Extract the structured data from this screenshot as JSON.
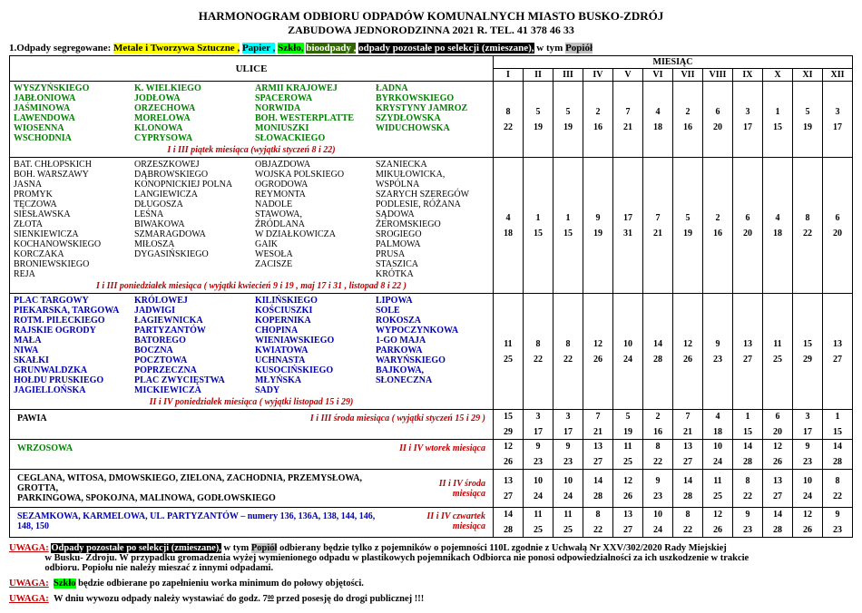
{
  "title": "HARMONOGRAM ODBIORU ODPADÓW KOMUNALNYCH  MIASTO BUSKO-ZDRÓJ",
  "subtitle": "ZABUDOWA  JEDNORODZINNA  2021 R.     TEL.  41 378 46 33",
  "legend_prefix": "1.Odpady segregowane:",
  "legend": {
    "metale": "Metale i Tworzywa Sztuczne ,",
    "papier": " Papier ,",
    "szklo": " Szkło,",
    "bio": "  bioodpady ,",
    "mixed": " odpady pozostałe po selekcji (zmieszane),",
    "suffix": " w tym ",
    "popiol": "Popiół"
  },
  "headers": {
    "ulice": "ULICE",
    "miesiac": "MIESIĄC",
    "months": [
      "I",
      "II",
      "III",
      "IV",
      "V",
      "VI",
      "VII",
      "VIII",
      "IX",
      "X",
      "XI",
      "XII"
    ]
  },
  "group1": {
    "cols": [
      [
        "WYSZYŃSKIEGO",
        "JABŁONIOWA",
        "JAŚMINOWA",
        "LAWENDOWA",
        "WIOSENNA",
        "WSCHODNIA"
      ],
      [
        "K. WIELKIEGO",
        "JODŁOWA",
        "ORZECHOWA",
        "MORELOWA",
        "KLONOWA",
        "CYPRYSOWA"
      ],
      [
        "ARMII KRAJOWEJ",
        "SPACEROWA",
        "NORWIDA",
        "BOH. WESTERPLATTE",
        "MONIUSZKI",
        "SŁOWACKIEGO"
      ],
      [
        "ŁADNA",
        "BYRKOWSKIEGO",
        "KRYSTYNY JAMROZ",
        "SZYDŁOWSKA",
        "WIDUCHOWSKA"
      ]
    ],
    "note": "I i III piątek miesiąca (wyjątki styczeń 8 i 22)",
    "r1": [
      "8",
      "5",
      "5",
      "2",
      "7",
      "4",
      "2",
      "6",
      "3",
      "1",
      "5",
      "3"
    ],
    "r2": [
      "22",
      "19",
      "19",
      "16",
      "21",
      "18",
      "16",
      "20",
      "17",
      "15",
      "19",
      "17"
    ]
  },
  "group2": {
    "cols": [
      [
        "BAT. CHŁOPSKICH",
        "BOH. WARSZAWY",
        "JASNA",
        "PROMYK",
        "TĘCZOWA",
        "SIESŁAWSKA",
        "ZŁOTA",
        "SIENKIEWICZA",
        "KOCHANOWSKIEGO",
        "KORCZAKA",
        "BRONIEWSKIEGO",
        "REJA"
      ],
      [
        "ORZESZKOWEJ",
        "DĄBROWSKIEGO",
        "KONOPNICKIEJ POLNA",
        "LANGIEWICZA",
        "DŁUGOSZA",
        "LEŚNA",
        "BIWAKOWA",
        "SZMARAGDOWA",
        "MIŁOSZA",
        "DYGASIŃSKIEGO"
      ],
      [
        "OBJAZDOWA",
        "WOJSKA POLSKIEGO",
        "OGRODOWA",
        "REYMONTA",
        "NADOLE",
        "STAWOWA,",
        "ŹRÓDLANA",
        "W DZIAŁKOWICZA",
        "GAIK",
        "WESOŁA",
        "ZACISZE"
      ],
      [
        "SZANIECKA",
        "MIKUŁOWICKA,",
        "WSPÓLNA",
        "SZARYCH SZEREGÓW",
        "PODLESIE, RÓŻANA",
        "SĄDOWA",
        "ŻEROMSKIEGO",
        "SROGIEGO",
        "PALMOWA",
        " PRUSA",
        "STASZICA",
        "KRÓTKA"
      ]
    ],
    "note": "I i III poniedziałek miesiąca ( wyjątki kwiecień 9 i 19 , maj 17 i 31 , listopad 8 i 22 )",
    "r1": [
      "4",
      "1",
      "1",
      "9",
      "17",
      "7",
      "5",
      "2",
      "6",
      "4",
      "8",
      "6"
    ],
    "r2": [
      "18",
      "15",
      "15",
      "19",
      "31",
      "21",
      "19",
      "16",
      "20",
      "18",
      "22",
      "20"
    ]
  },
  "group3": {
    "cols": [
      [
        "PLAC TARGOWY",
        "PIEKARSKA, TARGOWA",
        "ROTM. PILECKIEGO",
        "RAJSKIE OGRODY",
        "MAŁA",
        "NIWA",
        "SKAŁKI",
        "GRUNWALDZKA",
        "HOŁDU PRUSKIEGO",
        "JAGIELLOŃSKA"
      ],
      [
        "KRÓLOWEJ",
        "JADWIGI",
        "ŁAGIEWNICKA",
        "PARTYZANTÓW",
        "BATOREGO",
        " BOCZNA",
        "POCZTOWA",
        "POPRZECZNA",
        "PLAC ZWYCIĘSTWA",
        "MICKIEWICZA"
      ],
      [
        "KILIŃSKIEGO",
        "KOŚCIUSZKI",
        "KOPERNIKA",
        "CHOPINA",
        "WIENIAWSKIEGO",
        "KWIATOWA",
        "UCHNASTA",
        "KUSOCIŃSKIEGO",
        "MŁYŃSKA",
        "SADY"
      ],
      [
        "LIPOWA",
        "SOLE",
        "ROKOSZA",
        "WYPOCZYNKOWA",
        "1-GO MAJA",
        "PARKOWA",
        "WARYŃSKIEGO",
        "BAJKOWA,",
        "SŁONECZNA"
      ]
    ],
    "note": "II i IV poniedziałek miesiąca ( wyjątki listopad 15 i 29)",
    "r1": [
      "11",
      "8",
      "8",
      "12",
      "10",
      "14",
      "12",
      "9",
      "13",
      "11",
      "15",
      "13"
    ],
    "r2": [
      "25",
      "22",
      "22",
      "26",
      "24",
      "28",
      "26",
      "23",
      "27",
      "25",
      "29",
      "27"
    ]
  },
  "pawia": {
    "label": "PAWIA",
    "note": "I i III środa miesiąca ( wyjątki styczeń 15 i 29 )",
    "r1": [
      "15",
      "3",
      "3",
      "7",
      "5",
      "2",
      "7",
      "4",
      "1",
      "6",
      "3",
      "1"
    ],
    "r2": [
      "29",
      "17",
      "17",
      "21",
      "19",
      "16",
      "21",
      "18",
      "15",
      "20",
      "17",
      "15"
    ]
  },
  "wrzosowa": {
    "label": "WRZOSOWA",
    "note": "II i IV wtorek miesiąca",
    "r1": [
      "12",
      "9",
      "9",
      "13",
      "11",
      "8",
      "13",
      "10",
      "14",
      "12",
      "9",
      "14"
    ],
    "r2": [
      "26",
      "23",
      "23",
      "27",
      "25",
      "22",
      "27",
      "24",
      "28",
      "26",
      "23",
      "28"
    ]
  },
  "ceglana": {
    "label1": "CEGLANA, WITOSA, DMOWSKIEGO, ZIELONA, ZACHODNIA, PRZEMYSŁOWA, GROTTA,",
    "label2": "PARKINGOWA, SPOKOJNA, MALINOWA, GODŁOWSKIEGO",
    "note": "II i IV środa miesiąca",
    "r1": [
      "13",
      "10",
      "10",
      "14",
      "12",
      "9",
      "14",
      "11",
      "8",
      "13",
      "10",
      "8"
    ],
    "r2": [
      "27",
      "24",
      "24",
      "28",
      "26",
      "23",
      "28",
      "25",
      "22",
      "27",
      "24",
      "22"
    ]
  },
  "sezam": {
    "label": "SEZAMKOWA, KARMELOWA, UL. PARTYZANTÓW –  numery 136, 136A, 138, 144, 146, 148, 150",
    "note": "II i IV czwartek miesiąca",
    "r1": [
      "14",
      "11",
      "11",
      "8",
      "13",
      "10",
      "8",
      "12",
      "9",
      "14",
      "12",
      "9"
    ],
    "r2": [
      "28",
      "25",
      "25",
      "22",
      "27",
      "24",
      "22",
      "26",
      "23",
      "28",
      "26",
      "23"
    ]
  },
  "uwaga1a": "Odpady pozostałe po selekcji (zmieszane),",
  "uwaga1b": " w tym ",
  "uwaga1c": "Popiół",
  "uwaga1d": " odbierany będzie tylko z pojemników o pojemności 110L zgodnie  z Uchwałą Nr XXV/302/2020 Rady Miejskiej",
  "uwaga1e": "w Busku- Zdroju. W przypadku gromadzenia wyżej wymienionego odpadu w  plastikowych pojemnikach Odbiorca  nie ponosi odpowiedzialności za ich uszkodzenie w trakcie",
  "uwaga1f": "odbioru. Popiołu nie należy mieszać z  innymi odpadami.",
  "uwaga2a": "Szkło",
  "uwaga2b": " będzie odbierane  po zapełnieniu worka minimum do połowy objętości.",
  "uwaga3a": "W  dniu  wywozu  odpady  należy  wystawiać do godz.  7",
  "uwaga3b": "00",
  "uwaga3c": "  przed  posesję  do  drogi publicznej !!!",
  "uwaga_label": "UWAGA:"
}
